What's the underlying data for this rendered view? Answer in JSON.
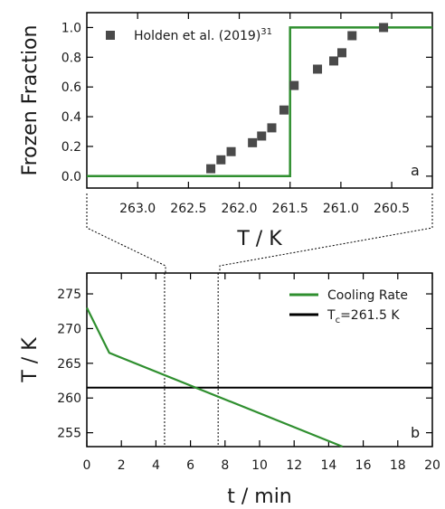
{
  "chart_data": [
    {
      "panel_tag": "a",
      "type": "line+scatter",
      "ylabel": "Frozen Fraction",
      "xlabel": "T / K",
      "x_reversed": true,
      "xlim": [
        263.5,
        260.1
      ],
      "ylim": [
        -0.08,
        1.1
      ],
      "x_ticks": [
        263.0,
        262.5,
        262.0,
        261.5,
        261.0,
        260.5
      ],
      "x_tick_labels": [
        "263.0",
        "262.5",
        "262.0",
        "261.5",
        "261.0",
        "260.5"
      ],
      "y_ticks": [
        0.0,
        0.2,
        0.4,
        0.6,
        0.8,
        1.0
      ],
      "y_tick_labels": [
        "0.0",
        "0.2",
        "0.4",
        "0.6",
        "0.8",
        "1.0"
      ],
      "legend": {
        "position": "top-left",
        "label": "Holden et al. (2019)",
        "label_sup": "31"
      },
      "series": [
        {
          "name": "Holden et al. (2019)",
          "kind": "scatter",
          "marker": "square",
          "color": "#4a4a4a",
          "points": [
            [
              262.28,
              0.05
            ],
            [
              262.18,
              0.11
            ],
            [
              262.08,
              0.165
            ],
            [
              261.87,
              0.225
            ],
            [
              261.78,
              0.27
            ],
            [
              261.68,
              0.325
            ],
            [
              261.56,
              0.445
            ],
            [
              261.46,
              0.61
            ],
            [
              261.23,
              0.72
            ],
            [
              261.07,
              0.775
            ],
            [
              260.99,
              0.83
            ],
            [
              260.89,
              0.945
            ],
            [
              260.58,
              1.0
            ]
          ]
        },
        {
          "kind": "step-line",
          "color": "#2f8f2f",
          "points": [
            [
              263.5,
              0.0
            ],
            [
              261.5,
              0.0
            ],
            [
              261.5,
              1.0
            ],
            [
              260.1,
              1.0
            ]
          ]
        }
      ]
    },
    {
      "panel_tag": "b",
      "type": "line",
      "ylabel": "T / K",
      "xlabel": "t / min",
      "xlim": [
        0,
        20
      ],
      "ylim": [
        253,
        278
      ],
      "x_ticks": [
        0,
        2,
        4,
        6,
        8,
        10,
        12,
        14,
        16,
        18,
        20
      ],
      "x_tick_labels": [
        "0",
        "2",
        "4",
        "6",
        "8",
        "10",
        "12",
        "14",
        "16",
        "18",
        "20"
      ],
      "y_ticks": [
        255,
        260,
        265,
        270,
        275
      ],
      "y_tick_labels": [
        "255",
        "260",
        "265",
        "270",
        "275"
      ],
      "legend": {
        "position": "top-right"
      },
      "series": [
        {
          "name": "Cooling Rate",
          "color": "#2f8f2f",
          "points": [
            [
              0,
              273
            ],
            [
              1.3,
              266.5
            ],
            [
              14.8,
              253
            ]
          ]
        },
        {
          "name": "T",
          "name_sub": "c",
          "name_suffix": "=261.5 K",
          "color": "#000000",
          "points": [
            [
              0,
              261.5
            ],
            [
              20,
              261.5
            ]
          ]
        }
      ],
      "reference_lines_x": [
        4.5,
        7.6
      ]
    }
  ]
}
